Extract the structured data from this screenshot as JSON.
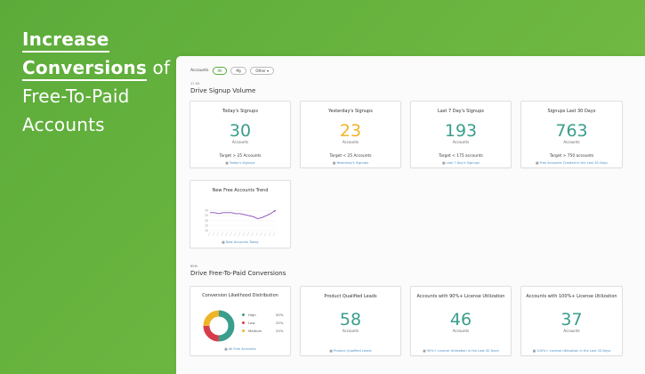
{
  "hero": {
    "line1": "Increase",
    "line2_em": "Conversions",
    "line2_rest": " of",
    "line3": "Free-To-Paid",
    "line4": "Accounts"
  },
  "filters": {
    "label": "Accounts",
    "options": [
      "All",
      "My",
      "Other"
    ]
  },
  "section1": {
    "meta": "17.04",
    "title": "Drive Signup Volume"
  },
  "signup_cards": [
    {
      "title": "Today's Signups",
      "value": "30",
      "unit": "Accounts",
      "target": "Target > 25 Accounts",
      "link": "Today's Signups"
    },
    {
      "title": "Yesterday's Signups",
      "value": "23",
      "unit": "Accounts",
      "target": "Target < 25 Accounts",
      "link": "Yesterday's Signups"
    },
    {
      "title": "Last 7 Day's Signups",
      "value": "193",
      "unit": "Accounts",
      "target": "Target < 175 accounts",
      "link": "Last 7 Day's Signups"
    },
    {
      "title": "Signups Last 30 Days",
      "value": "763",
      "unit": "Accounts",
      "target": "Target > 750 accounts",
      "link": "Free Accounts Created in the Last 30 Days"
    }
  ],
  "trend_card": {
    "title": "New Free Accounts Trend",
    "link": "New Accounts Today"
  },
  "colors": {
    "accent_teal": "#3a9e8c",
    "accent_yellow": "#f0b429",
    "accent_red": "#d63d4a",
    "brand_green": "#5cab3a",
    "link_blue": "#4a90c8"
  },
  "section2": {
    "meta": "80th",
    "title": "Drive Free-To-Paid Conversions"
  },
  "conversion_cards": [
    {
      "title": "Product Qualified Leads",
      "value": "58",
      "unit": "Accounts",
      "link": "Product Qualified Leads"
    },
    {
      "title": "Accounts with 90%+ License Utilization",
      "value": "46",
      "unit": "Accounts",
      "link": "90%+ License Utilization in the Last 30 Days"
    },
    {
      "title": "Accounts with 100%+ License Utilization",
      "value": "37",
      "unit": "Accounts",
      "link": "100%+ License Utilization in the Last 30 Days"
    }
  ],
  "donut_card": {
    "title": "Conversion Likelihood Distribution",
    "link": "All Free Accounts",
    "legend": [
      {
        "label": "High",
        "pct": "50%",
        "color": "#3a9e8c"
      },
      {
        "label": "Low",
        "pct": "25%",
        "color": "#d63d4a"
      },
      {
        "label": "Medium",
        "pct": "25%",
        "color": "#f0b429"
      }
    ]
  },
  "chart_data": [
    {
      "type": "pie",
      "title": "Conversion Likelihood Distribution",
      "categories": [
        "High",
        "Low",
        "Medium"
      ],
      "values": [
        50,
        25,
        25
      ],
      "colors": [
        "#3a9e8c",
        "#d63d4a",
        "#f0b429"
      ],
      "legend": "right"
    },
    {
      "type": "line",
      "title": "New Free Accounts Trend",
      "x": [
        1,
        2,
        3,
        4,
        5,
        6,
        7,
        8,
        9,
        10,
        11,
        12,
        13,
        14,
        15,
        16
      ],
      "series": [
        {
          "values": [
            28,
            28,
            27,
            28,
            28,
            28,
            27,
            27,
            26,
            25,
            24,
            22,
            23,
            25,
            27,
            30
          ]
        }
      ],
      "ylim": [
        10,
        35
      ],
      "yticks": [
        "30",
        "25",
        "20",
        "15",
        "10"
      ],
      "grid": true
    }
  ]
}
